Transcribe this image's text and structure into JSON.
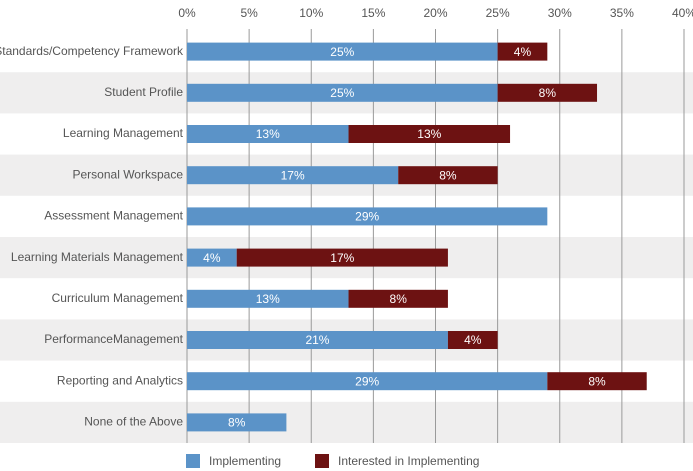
{
  "chart_data": {
    "type": "stacked-bar-horizontal",
    "categories": [
      "Standards/Competency Framework",
      "Student Profile",
      "Learning Management",
      "Personal Workspace",
      "Assessment Management",
      "Learning Materials Management",
      "Curriculum Management",
      "PerformanceManagement",
      "Reporting and Analytics",
      "None of the Above"
    ],
    "series": [
      {
        "name": "Implementing",
        "color": "#5b93c8",
        "values": [
          25,
          25,
          13,
          17,
          29,
          4,
          13,
          21,
          29,
          8
        ],
        "value_labels": [
          "25%",
          "25%",
          "13%",
          "17%",
          "29%",
          "4%",
          "13%",
          "21%",
          "29%",
          "8%"
        ]
      },
      {
        "name": "Interested in Implementing",
        "color": "#6d1212",
        "values": [
          4,
          8,
          13,
          8,
          null,
          17,
          8,
          4,
          8,
          null
        ],
        "value_labels": [
          "4%",
          "8%",
          "13%",
          "8%",
          null,
          "17%",
          "8%",
          "4%",
          "8%",
          null
        ]
      }
    ],
    "xlim": [
      0,
      40
    ],
    "xticks": [
      {
        "value": 0,
        "label": "0%"
      },
      {
        "value": 5,
        "label": "5%"
      },
      {
        "value": 10,
        "label": "10%"
      },
      {
        "value": 15,
        "label": "15%"
      },
      {
        "value": 20,
        "label": "20%"
      },
      {
        "value": 25,
        "label": "25%"
      },
      {
        "value": 30,
        "label": "30%"
      },
      {
        "value": 35,
        "label": "35%"
      },
      {
        "value": 40,
        "label": "40%"
      }
    ],
    "grid": true,
    "legend": "bottom"
  }
}
